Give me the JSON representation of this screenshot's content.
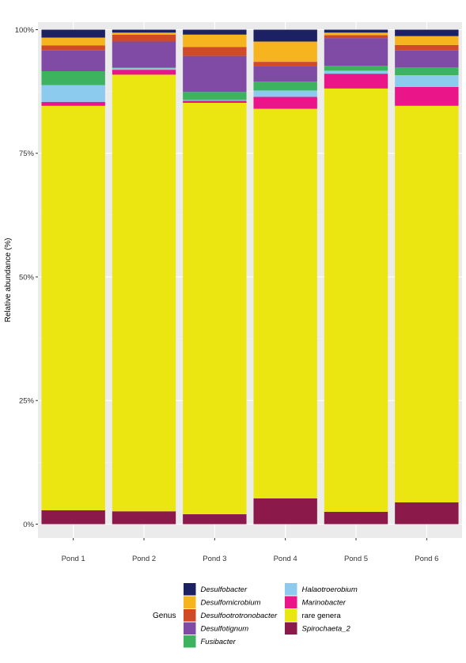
{
  "chart_data": {
    "type": "bar",
    "stacked": true,
    "title": "",
    "xlabel": "",
    "ylabel": "Relative abundance (%)",
    "ylim": [
      0,
      100
    ],
    "yticks": [
      0,
      25,
      50,
      75,
      100
    ],
    "ytick_labels": [
      "0%",
      "25%",
      "50%",
      "75%",
      "100%"
    ],
    "grid": true,
    "background": "#ebebeb",
    "legend_title": "Genus",
    "legend_position": "bottom",
    "categories": [
      "Pond 1",
      "Pond 2",
      "Pond 3",
      "Pond 4",
      "Pond 5",
      "Pond 6"
    ],
    "series": [
      {
        "name": "Spirochaeta_2",
        "italic": true,
        "color": "#8b1a4a",
        "values": [
          2.8,
          2.6,
          2.0,
          5.2,
          2.5,
          4.4
        ]
      },
      {
        "name": "rare genera",
        "italic": false,
        "color": "#ebe512",
        "values": [
          81.8,
          88.3,
          83.2,
          78.8,
          85.6,
          80.2
        ]
      },
      {
        "name": "Marinobacter",
        "italic": true,
        "color": "#ea1589",
        "values": [
          0.8,
          1.0,
          0.4,
          2.4,
          3.0,
          3.8
        ]
      },
      {
        "name": "Halaotroerobium",
        "italic": true,
        "color": "#8ccbee",
        "values": [
          3.4,
          0.3,
          0.2,
          1.3,
          0.6,
          2.4
        ]
      },
      {
        "name": "Fusibacter",
        "italic": true,
        "color": "#3db35f",
        "values": [
          2.8,
          0.2,
          1.6,
          1.8,
          1.0,
          1.6
        ]
      },
      {
        "name": "Desulfotignum",
        "italic": true,
        "color": "#7f4ba5",
        "values": [
          4.2,
          5.2,
          7.3,
          3.2,
          5.6,
          3.4
        ]
      },
      {
        "name": "Desulfootrotronobacter",
        "italic": true,
        "color": "#cf4a27",
        "values": [
          1.0,
          1.4,
          1.8,
          0.8,
          0.6,
          1.1
        ]
      },
      {
        "name": "Desulfomicrobium",
        "italic": true,
        "color": "#f6b41f",
        "values": [
          1.6,
          0.4,
          2.5,
          4.1,
          0.5,
          1.8
        ]
      },
      {
        "name": "Desulfobacter",
        "italic": true,
        "color": "#1c2164",
        "values": [
          1.6,
          0.6,
          1.0,
          2.4,
          0.6,
          1.3
        ]
      }
    ],
    "legend_order": [
      [
        "Desulfobacter",
        "Desulfomicrobium",
        "Desulfootrotronobacter",
        "Desulfotignum",
        "Fusibacter"
      ],
      [
        "Halaotroerobium",
        "Marinobacter",
        "rare genera",
        "Spirochaeta_2"
      ]
    ]
  }
}
